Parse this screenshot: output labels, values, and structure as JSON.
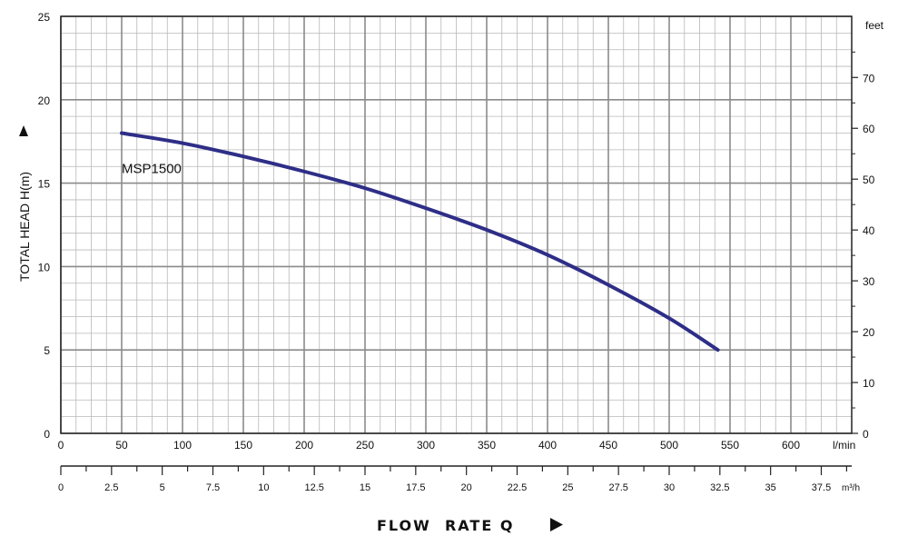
{
  "chart_data": {
    "type": "line",
    "y_axis": {
      "label": "TOTAL HEAD H(m)",
      "range": [
        0,
        25
      ],
      "ticks": [
        0,
        5,
        10,
        15,
        20,
        25
      ]
    },
    "y2_axis": {
      "unit": "feet",
      "range_hint": "feet",
      "ticks": [
        0,
        10,
        20,
        30,
        40,
        50,
        60,
        70
      ]
    },
    "x_axis": {
      "unit": "l/min",
      "range": [
        0,
        650
      ],
      "ticks": [
        0,
        50,
        100,
        150,
        200,
        250,
        300,
        350,
        400,
        450,
        500,
        550,
        600
      ]
    },
    "x2_axis": {
      "unit": "m³/h",
      "ticks": [
        "0",
        "2.5",
        "5",
        "7.5",
        "10",
        "12.5",
        "15",
        "17.5",
        "20",
        "22.5",
        "25",
        "27.5",
        "30",
        "32.5",
        "35",
        "37.5"
      ]
    },
    "bottom_title": "FLOW  RATE Q",
    "grid": true,
    "series": [
      {
        "name": "MSP1500",
        "color": "#2e2e88",
        "x": [
          50,
          100,
          150,
          200,
          250,
          300,
          350,
          400,
          450,
          500,
          540
        ],
        "y": [
          18.0,
          17.4,
          16.6,
          15.7,
          14.7,
          13.5,
          12.2,
          10.7,
          8.9,
          6.9,
          5.0
        ]
      }
    ]
  }
}
